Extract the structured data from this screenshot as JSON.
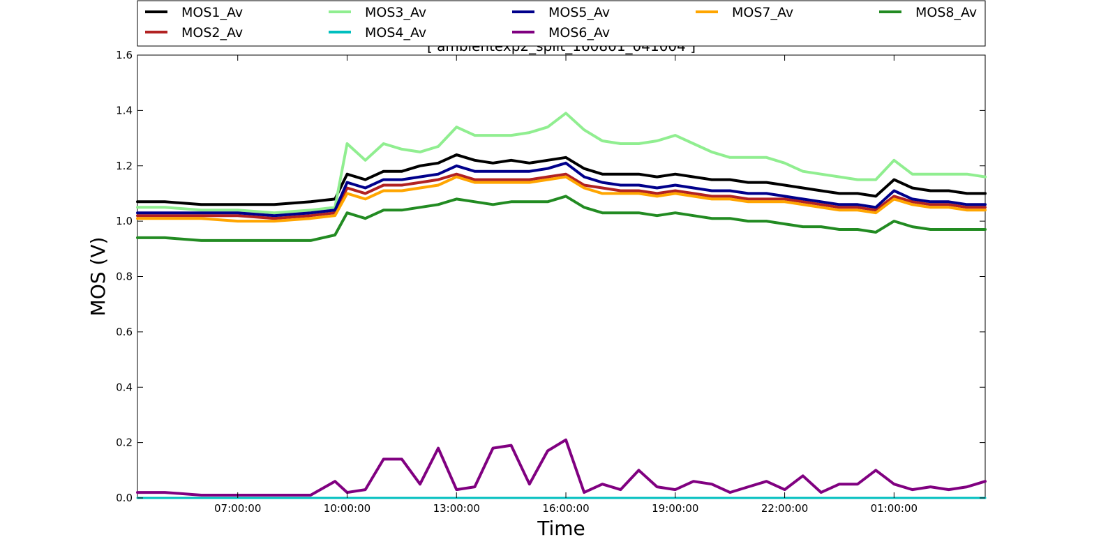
{
  "chart_data": {
    "type": "line",
    "title": "[ ambientexp2_split_160801_041004 ]",
    "xlabel": "Time",
    "ylabel": "MOS (V)",
    "xlim": [
      "04:15:00",
      "03:30:00"
    ],
    "ylim": [
      0.0,
      1.6
    ],
    "x_ticks": [
      "07:00:00",
      "10:00:00",
      "13:00:00",
      "16:00:00",
      "19:00:00",
      "22:00:00",
      "01:00:00"
    ],
    "y_ticks": [
      "0.0",
      "0.2",
      "0.4",
      "0.6",
      "0.8",
      "1.0",
      "1.2",
      "1.4",
      "1.6"
    ],
    "legend": "top",
    "grid": false,
    "x": [
      "04:15:00",
      "05:00:00",
      "06:00:00",
      "07:00:00",
      "08:00:00",
      "09:00:00",
      "09:40:00",
      "10:00:00",
      "10:30:00",
      "11:00:00",
      "11:30:00",
      "12:00:00",
      "12:30:00",
      "13:00:00",
      "13:30:00",
      "14:00:00",
      "14:30:00",
      "15:00:00",
      "15:30:00",
      "16:00:00",
      "16:30:00",
      "17:00:00",
      "17:30:00",
      "18:00:00",
      "18:30:00",
      "19:00:00",
      "19:30:00",
      "20:00:00",
      "20:30:00",
      "21:00:00",
      "21:30:00",
      "22:00:00",
      "22:30:00",
      "23:00:00",
      "23:30:00",
      "00:00:00",
      "00:30:00",
      "01:00:00",
      "01:30:00",
      "02:00:00",
      "02:30:00",
      "03:00:00",
      "03:30:00"
    ],
    "series": [
      {
        "name": "MOS1_Av",
        "color": "#000000",
        "values": [
          1.07,
          1.07,
          1.06,
          1.06,
          1.06,
          1.07,
          1.08,
          1.17,
          1.15,
          1.18,
          1.18,
          1.2,
          1.21,
          1.24,
          1.22,
          1.21,
          1.22,
          1.21,
          1.22,
          1.23,
          1.19,
          1.17,
          1.17,
          1.17,
          1.16,
          1.17,
          1.16,
          1.15,
          1.15,
          1.14,
          1.14,
          1.13,
          1.12,
          1.11,
          1.1,
          1.1,
          1.09,
          1.15,
          1.12,
          1.11,
          1.11,
          1.1,
          1.1
        ]
      },
      {
        "name": "MOS2_Av",
        "color": "#b22222",
        "values": [
          1.02,
          1.02,
          1.02,
          1.02,
          1.01,
          1.02,
          1.03,
          1.12,
          1.1,
          1.13,
          1.13,
          1.14,
          1.15,
          1.17,
          1.15,
          1.15,
          1.15,
          1.15,
          1.16,
          1.17,
          1.13,
          1.12,
          1.11,
          1.11,
          1.1,
          1.11,
          1.1,
          1.09,
          1.09,
          1.08,
          1.08,
          1.08,
          1.07,
          1.06,
          1.05,
          1.05,
          1.04,
          1.09,
          1.07,
          1.06,
          1.06,
          1.05,
          1.05
        ]
      },
      {
        "name": "MOS3_Av",
        "color": "#90ee90",
        "values": [
          1.05,
          1.05,
          1.04,
          1.04,
          1.03,
          1.04,
          1.05,
          1.28,
          1.22,
          1.28,
          1.26,
          1.25,
          1.27,
          1.34,
          1.31,
          1.31,
          1.31,
          1.32,
          1.34,
          1.39,
          1.33,
          1.29,
          1.28,
          1.28,
          1.29,
          1.31,
          1.28,
          1.25,
          1.23,
          1.23,
          1.23,
          1.21,
          1.18,
          1.17,
          1.16,
          1.15,
          1.15,
          1.22,
          1.17,
          1.17,
          1.17,
          1.17,
          1.16
        ]
      },
      {
        "name": "MOS4_Av",
        "color": "#00bfbf",
        "values": [
          0.0,
          0.0,
          0.0,
          0.0,
          0.0,
          0.0,
          0.0,
          0.0,
          0.0,
          0.0,
          0.0,
          0.0,
          0.0,
          0.0,
          0.0,
          0.0,
          0.0,
          0.0,
          0.0,
          0.0,
          0.0,
          0.0,
          0.0,
          0.0,
          0.0,
          0.0,
          0.0,
          0.0,
          0.0,
          0.0,
          0.0,
          0.0,
          0.0,
          0.0,
          0.0,
          0.0,
          0.0,
          0.0,
          0.0,
          0.0,
          0.0,
          0.0,
          0.0
        ]
      },
      {
        "name": "MOS5_Av",
        "color": "#00008b",
        "values": [
          1.03,
          1.03,
          1.03,
          1.03,
          1.02,
          1.03,
          1.04,
          1.14,
          1.12,
          1.15,
          1.15,
          1.16,
          1.17,
          1.2,
          1.18,
          1.18,
          1.18,
          1.18,
          1.19,
          1.21,
          1.16,
          1.14,
          1.13,
          1.13,
          1.12,
          1.13,
          1.12,
          1.11,
          1.11,
          1.1,
          1.1,
          1.09,
          1.08,
          1.07,
          1.06,
          1.06,
          1.05,
          1.11,
          1.08,
          1.07,
          1.07,
          1.06,
          1.06
        ]
      },
      {
        "name": "MOS6_Av",
        "color": "#800080",
        "values": [
          0.02,
          0.02,
          0.01,
          0.01,
          0.01,
          0.01,
          0.06,
          0.02,
          0.03,
          0.14,
          0.14,
          0.05,
          0.18,
          0.03,
          0.04,
          0.18,
          0.19,
          0.05,
          0.17,
          0.21,
          0.02,
          0.05,
          0.03,
          0.1,
          0.04,
          0.03,
          0.06,
          0.05,
          0.02,
          0.04,
          0.06,
          0.03,
          0.08,
          0.02,
          0.05,
          0.05,
          0.1,
          0.05,
          0.03,
          0.04,
          0.03,
          0.04,
          0.06
        ]
      },
      {
        "name": "MOS7_Av",
        "color": "#ffa500",
        "values": [
          1.01,
          1.01,
          1.01,
          1.0,
          1.0,
          1.01,
          1.02,
          1.1,
          1.08,
          1.11,
          1.11,
          1.12,
          1.13,
          1.16,
          1.14,
          1.14,
          1.14,
          1.14,
          1.15,
          1.16,
          1.12,
          1.1,
          1.1,
          1.1,
          1.09,
          1.1,
          1.09,
          1.08,
          1.08,
          1.07,
          1.07,
          1.07,
          1.06,
          1.05,
          1.04,
          1.04,
          1.03,
          1.08,
          1.06,
          1.05,
          1.05,
          1.04,
          1.04
        ]
      },
      {
        "name": "MOS8_Av",
        "color": "#228b22",
        "values": [
          0.94,
          0.94,
          0.93,
          0.93,
          0.93,
          0.93,
          0.95,
          1.03,
          1.01,
          1.04,
          1.04,
          1.05,
          1.06,
          1.08,
          1.07,
          1.06,
          1.07,
          1.07,
          1.07,
          1.09,
          1.05,
          1.03,
          1.03,
          1.03,
          1.02,
          1.03,
          1.02,
          1.01,
          1.01,
          1.0,
          1.0,
          0.99,
          0.98,
          0.98,
          0.97,
          0.97,
          0.96,
          1.0,
          0.98,
          0.97,
          0.97,
          0.97,
          0.97
        ]
      }
    ]
  }
}
